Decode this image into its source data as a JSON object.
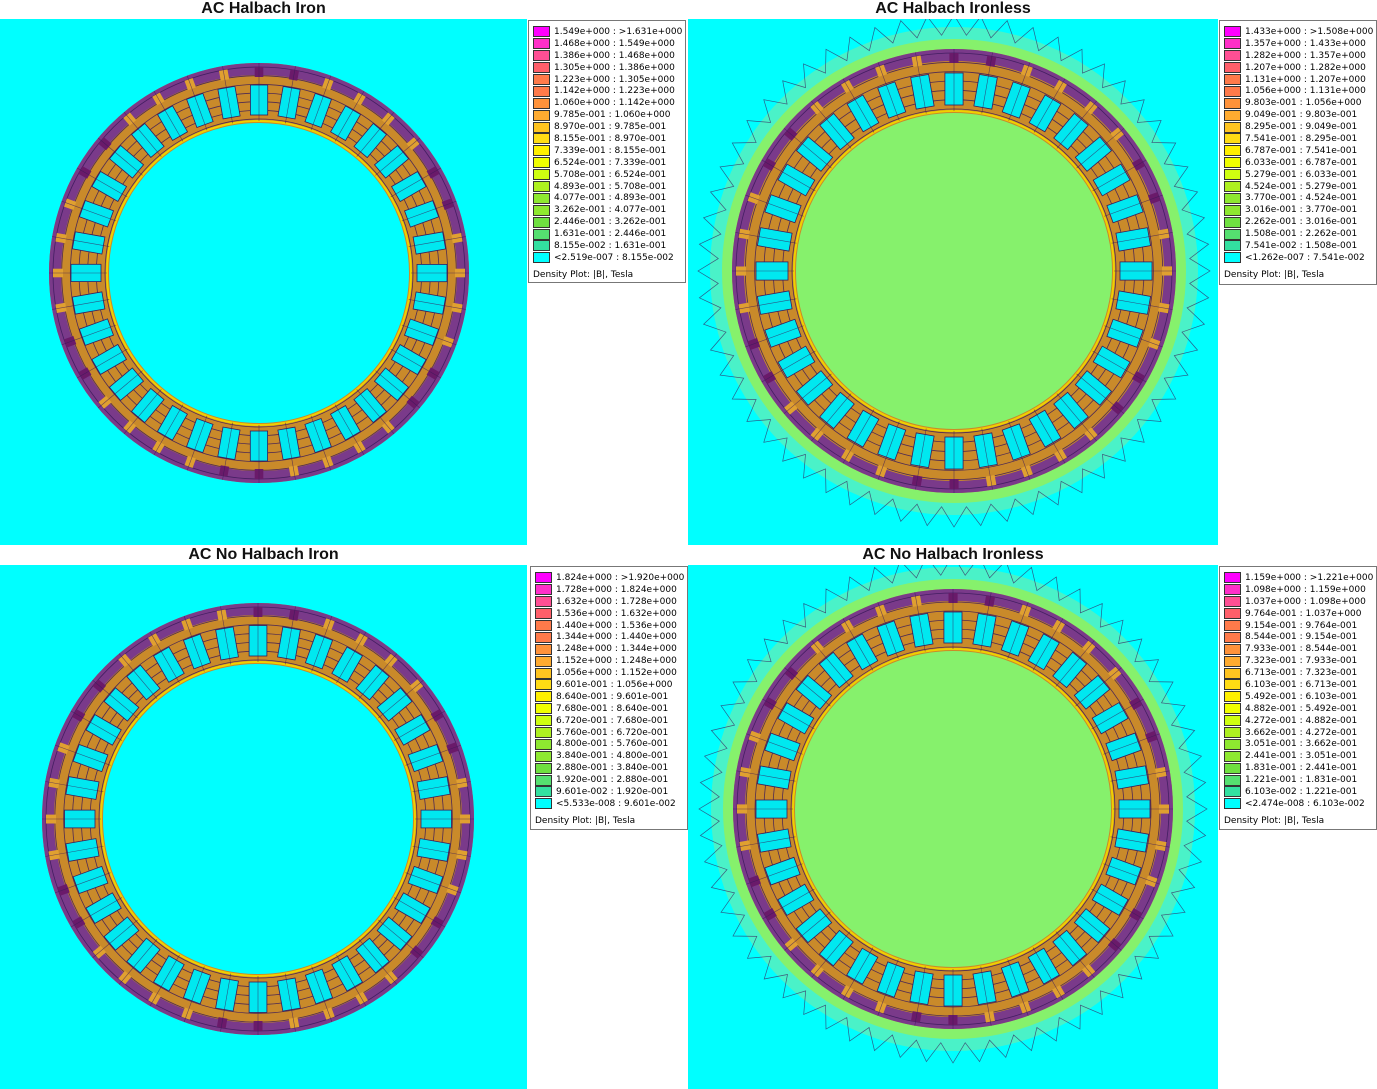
{
  "colors": {
    "background": "#00ffff",
    "flux_lines": "#3a1a5a",
    "ramp": [
      "#ff00ff",
      "#ff2fc8",
      "#ff4f94",
      "#ff5f6a",
      "#ff7a4a",
      "#ff923a",
      "#ffab30",
      "#ffc420",
      "#ffdc14",
      "#fff000",
      "#f0ff00",
      "#cfff10",
      "#aef020",
      "#8ee830",
      "#6fe040",
      "#55e070",
      "#33e0a0",
      "#00ffff"
    ]
  },
  "panels": [
    {
      "title": "AC Halbach Iron",
      "legend_footer": "Density Plot: |B|, Tesla",
      "legend": [
        "1.549e+000 : >1.631e+000",
        "1.468e+000 : 1.549e+000",
        "1.386e+000 : 1.468e+000",
        "1.305e+000 : 1.386e+000",
        "1.223e+000 : 1.305e+000",
        "1.142e+000 : 1.223e+000",
        "1.060e+000 : 1.142e+000",
        "9.785e-001 : 1.060e+000",
        "8.970e-001 : 9.785e-001",
        "8.155e-001 : 8.970e-001",
        "7.339e-001 : 8.155e-001",
        "6.524e-001 : 7.339e-001",
        "5.708e-001 : 6.524e-001",
        "4.893e-001 : 5.708e-001",
        "4.077e-001 : 4.893e-001",
        "3.262e-001 : 4.077e-001",
        "2.446e-001 : 3.262e-001",
        "1.631e-001 : 2.446e-001",
        "8.155e-002 : 1.631e-001",
        "<2.519e-007 : 8.155e-002"
      ]
    },
    {
      "title": "AC Halbach Ironless",
      "legend_footer": "Density Plot: |B|, Tesla",
      "legend": [
        "1.433e+000 : >1.508e+000",
        "1.357e+000 : 1.433e+000",
        "1.282e+000 : 1.357e+000",
        "1.207e+000 : 1.282e+000",
        "1.131e+000 : 1.207e+000",
        "1.056e+000 : 1.131e+000",
        "9.803e-001 : 1.056e+000",
        "9.049e-001 : 9.803e-001",
        "8.295e-001 : 9.049e-001",
        "7.541e-001 : 8.295e-001",
        "6.787e-001 : 7.541e-001",
        "6.033e-001 : 6.787e-001",
        "5.279e-001 : 6.033e-001",
        "4.524e-001 : 5.279e-001",
        "3.770e-001 : 4.524e-001",
        "3.016e-001 : 3.770e-001",
        "2.262e-001 : 3.016e-001",
        "1.508e-001 : 2.262e-001",
        "7.541e-002 : 1.508e-001",
        "<1.262e-007 : 7.541e-002"
      ]
    },
    {
      "title": "AC No Halbach Iron",
      "legend_footer": "Density Plot: |B|, Tesla",
      "legend": [
        "1.824e+000 : >1.920e+000",
        "1.728e+000 : 1.824e+000",
        "1.632e+000 : 1.728e+000",
        "1.536e+000 : 1.632e+000",
        "1.440e+000 : 1.536e+000",
        "1.344e+000 : 1.440e+000",
        "1.248e+000 : 1.344e+000",
        "1.152e+000 : 1.248e+000",
        "1.056e+000 : 1.152e+000",
        "9.601e-001 : 1.056e+000",
        "8.640e-001 : 9.601e-001",
        "7.680e-001 : 8.640e-001",
        "6.720e-001 : 7.680e-001",
        "5.760e-001 : 6.720e-001",
        "4.800e-001 : 5.760e-001",
        "3.840e-001 : 4.800e-001",
        "2.880e-001 : 3.840e-001",
        "1.920e-001 : 2.880e-001",
        "9.601e-002 : 1.920e-001",
        "<5.533e-008 : 9.601e-002"
      ]
    },
    {
      "title": "AC No Halbach Ironless",
      "legend_footer": "Density Plot: |B|, Tesla",
      "legend": [
        "1.159e+000 : >1.221e+000",
        "1.098e+000 : 1.159e+000",
        "1.037e+000 : 1.098e+000",
        "9.764e-001 : 1.037e+000",
        "9.154e-001 : 9.764e-001",
        "8.544e-001 : 9.154e-001",
        "7.933e-001 : 8.544e-001",
        "7.323e-001 : 7.933e-001",
        "6.713e-001 : 7.323e-001",
        "6.103e-001 : 6.713e-001",
        "5.492e-001 : 6.103e-001",
        "4.882e-001 : 5.492e-001",
        "4.272e-001 : 4.882e-001",
        "3.662e-001 : 4.272e-001",
        "3.051e-001 : 3.662e-001",
        "2.441e-001 : 3.051e-001",
        "1.831e-001 : 2.441e-001",
        "1.221e-001 : 1.831e-001",
        "6.103e-002 : 1.221e-001",
        "<2.474e-008 : 6.103e-002"
      ]
    }
  ]
}
